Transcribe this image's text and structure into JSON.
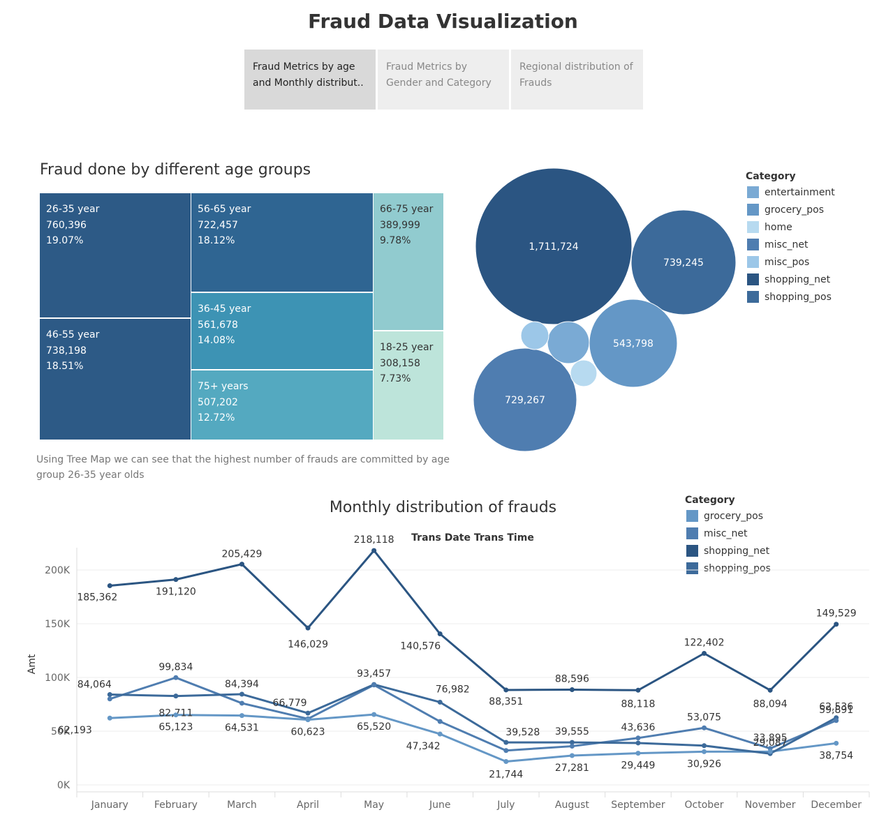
{
  "header": {
    "title": "Fraud Data Visualization",
    "tabs": [
      {
        "label": "Fraud Metrics by age and Monthly distribut..",
        "active": true
      },
      {
        "label": "Fraud Metrics by Gender and Category",
        "active": false
      },
      {
        "label": "Regional distribution of Frauds",
        "active": false
      }
    ]
  },
  "treemap": {
    "title": "Fraud done by different age groups",
    "cells": [
      {
        "label": "26-35 year",
        "value": "760,396",
        "pct": "19.07%"
      },
      {
        "label": "46-55 year",
        "value": "738,198",
        "pct": "18.51%"
      },
      {
        "label": "56-65 year",
        "value": "722,457",
        "pct": "18.12%"
      },
      {
        "label": "36-45 year",
        "value": "561,678",
        "pct": "14.08%"
      },
      {
        "label": "75+ years",
        "value": "507,202",
        "pct": "12.72%"
      },
      {
        "label": "66-75 year",
        "value": "389,999",
        "pct": "9.78%"
      },
      {
        "label": "18-25 year",
        "value": "308,158",
        "pct": "7.73%"
      }
    ],
    "caption": "Using Tree Map we can see that the highest number of frauds are committed by age group 26-35 year olds"
  },
  "bubbles": {
    "legend_title": "Category",
    "legend": [
      {
        "name": "entertainment",
        "color": "#7aaad4"
      },
      {
        "name": "grocery_pos",
        "color": "#6497c6"
      },
      {
        "name": "home",
        "color": "#b7daf0"
      },
      {
        "name": "misc_net",
        "color": "#4f7db0"
      },
      {
        "name": "misc_pos",
        "color": "#9cc7e8"
      },
      {
        "name": "shopping_net",
        "color": "#2b5582"
      },
      {
        "name": "shopping_pos",
        "color": "#3c6a9a"
      }
    ],
    "items": [
      {
        "category": "shopping_net",
        "label": "1,711,724",
        "color": "#2b5582"
      },
      {
        "category": "shopping_pos",
        "label": "739,245",
        "color": "#3c6a9a"
      },
      {
        "category": "grocery_pos",
        "label": "543,798",
        "color": "#6497c6"
      },
      {
        "category": "misc_net",
        "label": "729,267",
        "color": "#4f7db0"
      },
      {
        "category": "entertainment",
        "label": "",
        "color": "#7aaad4"
      },
      {
        "category": "misc_pos",
        "label": "",
        "color": "#9cc7e8"
      },
      {
        "category": "home",
        "label": "",
        "color": "#b7daf0"
      }
    ]
  },
  "line_chart": {
    "title": "Monthly distribution of frauds",
    "legend_title": "Category",
    "legend": [
      {
        "name": "grocery_pos",
        "color": "#6497c6"
      },
      {
        "name": "misc_net",
        "color": "#4f7db0"
      },
      {
        "name": "shopping_net",
        "color": "#2b5582"
      },
      {
        "name": "shopping_pos",
        "color": "#3c6a9a"
      }
    ]
  },
  "chart_data": {
    "type": "line",
    "title": "Trans Date Trans Time",
    "xlabel": "",
    "ylabel": "Amt",
    "ylim": [
      0,
      230000
    ],
    "yticks": [
      "0K",
      "50K",
      "100K",
      "150K",
      "200K"
    ],
    "categories": [
      "January",
      "February",
      "March",
      "April",
      "May",
      "June",
      "July",
      "August",
      "September",
      "October",
      "November",
      "December"
    ],
    "grid": true,
    "series": [
      {
        "name": "shopping_net",
        "color": "#2b5582",
        "values": [
          185362,
          191120,
          205429,
          146029,
          218118,
          140576,
          88351,
          88596,
          88118,
          122402,
          88094,
          149529
        ],
        "labels": [
          "185,362",
          "191,120",
          "205,429",
          "146,029",
          "218,118",
          "140,576",
          "88,351",
          "88,596",
          "88,118",
          "122,402",
          "88,094",
          "149,529"
        ]
      },
      {
        "name": "shopping_pos",
        "color": "#3c6a9a",
        "values": [
          84064,
          82711,
          84394,
          66779,
          93457,
          76982,
          39528,
          39555,
          39000,
          36500,
          29087,
          62536
        ],
        "labels": [
          "84,064",
          "82,711",
          "84,394",
          "66,779",
          "93,457",
          "76,982",
          "39,528",
          "39,555",
          "",
          "",
          "29,087",
          "62,536"
        ]
      },
      {
        "name": "misc_net",
        "color": "#4f7db0",
        "values": [
          80000,
          99834,
          76000,
          61500,
          93000,
          59000,
          32000,
          36000,
          43636,
          53075,
          33895,
          59891
        ],
        "labels": [
          "",
          "99,834",
          "",
          "",
          "",
          "",
          "",
          "",
          "43,636",
          "53,075",
          "33,895",
          "59,891"
        ]
      },
      {
        "name": "grocery_pos",
        "color": "#6497c6",
        "values": [
          62193,
          65123,
          64531,
          60623,
          65520,
          47342,
          21744,
          27281,
          29449,
          30926,
          31000,
          38754
        ],
        "labels": [
          "62,193",
          "65,123",
          "64,531",
          "60,623",
          "65,520",
          "47,342",
          "21,744",
          "27,281",
          "29,449",
          "30,926",
          "",
          "38,754"
        ]
      }
    ]
  }
}
